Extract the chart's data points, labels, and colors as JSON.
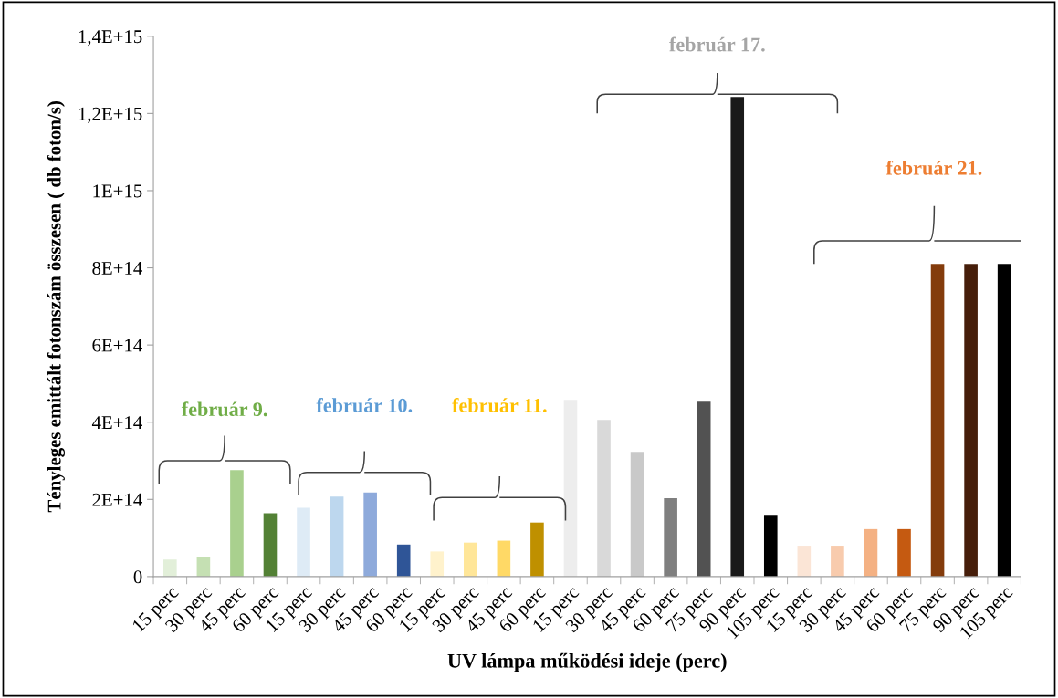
{
  "chart_data": {
    "type": "bar",
    "xlabel": "UV lámpa működési ideje (perc)",
    "ylabel": "Tényleges emittált fotonszám összesen ( db foton/s)",
    "categories": [
      "15 perc",
      "30 perc",
      "45 perc",
      "60 perc",
      "15 perc",
      "30 perc",
      "45 perc",
      "60 perc",
      "15 perc",
      "30 perc",
      "45 perc",
      "60 perc",
      "15 perc",
      "30 perc",
      "45 perc",
      "60 perc",
      "75 perc",
      "90 perc",
      "105 perc",
      "15 perc",
      "30 perc",
      "45 perc",
      "60 perc",
      "75 perc",
      "90 perc",
      "105 perc"
    ],
    "values": [
      44000000000000.0,
      52000000000000.0,
      276000000000000.0,
      164000000000000.0,
      178000000000000.0,
      207000000000000.0,
      218000000000000.0,
      83000000000000.0,
      65000000000000.0,
      88000000000000.0,
      93000000000000.0,
      140000000000000.0,
      458000000000000.0,
      406000000000000.0,
      323000000000000.0,
      203000000000000.0,
      453000000000000.0,
      1243000000000000.0,
      160000000000000.0,
      80000000000000.0,
      80000000000000.0,
      123000000000000.0,
      123000000000000.0,
      810000000000000.0,
      810000000000000.0,
      810000000000000.0
    ],
    "colors": [
      "#e2efd9",
      "#c5e0b3",
      "#a9d08e",
      "#538135",
      "#deebf6",
      "#bdd7ee",
      "#8eaadb",
      "#2f5597",
      "#fff2cc",
      "#ffe699",
      "#ffd966",
      "#bf9000",
      "#ededed",
      "#d9d9d9",
      "#c9c9c9",
      "#7f7f7f",
      "#525252",
      "#1a1a1a",
      "#000000",
      "#fbe5d6",
      "#f8cbad",
      "#f4b183",
      "#c55a11",
      "#843c0c",
      "#461e0a",
      "#000000"
    ],
    "ylim": [
      0,
      1400000000000000.0
    ],
    "yticks": [
      0,
      {
        "value": 200000000000000.0,
        "label": "2E+14"
      },
      {
        "value": 400000000000000.0,
        "label": "4E+14"
      },
      {
        "value": 600000000000000.0,
        "label": "6E+14"
      },
      {
        "value": 800000000000000.0,
        "label": "8E+14"
      },
      {
        "value": 1000000000000000.0,
        "label": "1E+15"
      },
      {
        "value": 1200000000000000.0,
        "label": "1,2E+15"
      },
      {
        "value": 1400000000000000.0,
        "label": "1,4E+15"
      }
    ],
    "annotations": [
      "február 9.",
      "február 10.",
      "február 11.",
      "február 17.",
      "február 21."
    ],
    "grid": false,
    "legend": false
  }
}
